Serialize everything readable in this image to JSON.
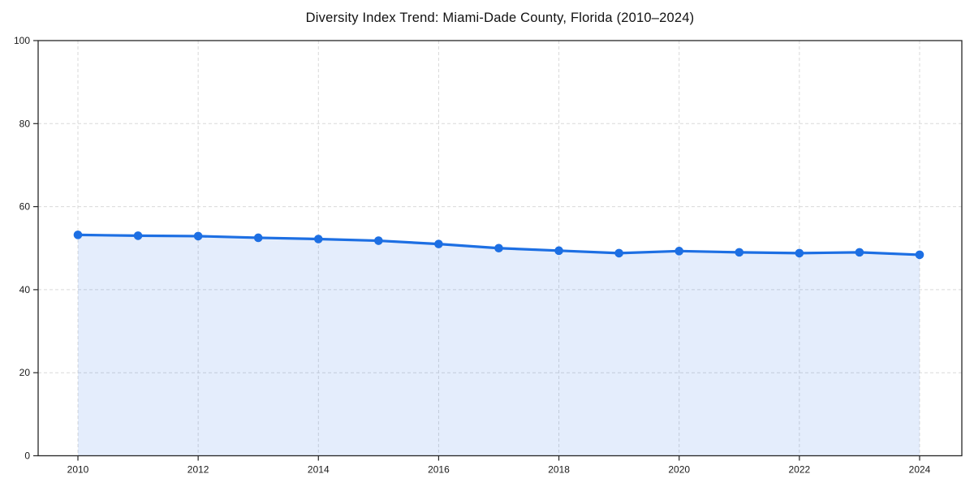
{
  "title": "Diversity Index Trend: Miami-Dade County, Florida (2010–2024)",
  "chart_data": {
    "type": "area",
    "title": "Diversity Index Trend: Miami-Dade County, Florida (2010–2024)",
    "x": [
      2010,
      2011,
      2012,
      2013,
      2014,
      2015,
      2016,
      2017,
      2018,
      2019,
      2020,
      2021,
      2022,
      2023,
      2024
    ],
    "values": [
      53.2,
      53.0,
      52.9,
      52.5,
      52.2,
      51.8,
      51.0,
      50.0,
      49.4,
      48.8,
      49.3,
      49.0,
      48.8,
      49.0,
      48.4
    ],
    "xlabel": "",
    "ylabel": "",
    "ylim": [
      0,
      100
    ],
    "yticks": [
      0,
      20,
      40,
      60,
      80,
      100
    ],
    "xticks": [
      2010,
      2012,
      2014,
      2016,
      2018,
      2020,
      2022,
      2024
    ],
    "grid": true,
    "legend": false,
    "marker": "circle",
    "colors": {
      "line": "#1d6fe3",
      "marker": "#1d6fe3",
      "fill": "#1d6fe3",
      "fill_opacity": 0.12,
      "grid": "#d9d9d9",
      "axis": "#262626",
      "tick_label": "#1a1a1a",
      "title": "#111111"
    }
  }
}
